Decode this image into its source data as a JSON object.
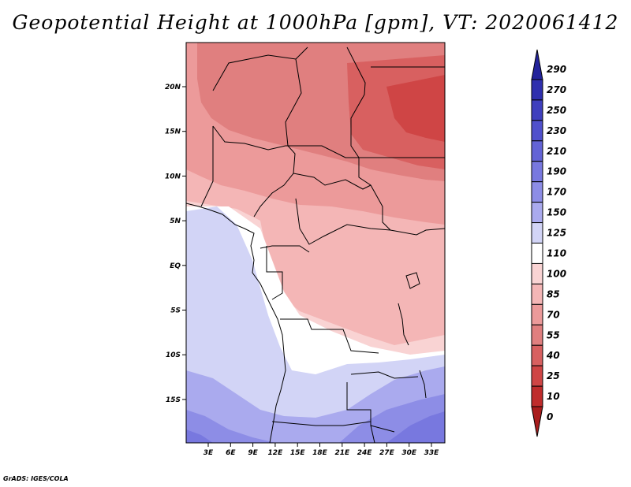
{
  "title": "Geopotential Height at 1000hPa [gpm], VT: 2020061412",
  "credit": "GrADS: IGES/COLA",
  "lat_ticks": [
    "20N",
    "15N",
    "10N",
    "5N",
    "EQ",
    "5S",
    "10S",
    "15S"
  ],
  "lon_ticks": [
    "3E",
    "6E",
    "9E",
    "12E",
    "15E",
    "18E",
    "21E",
    "24E",
    "27E",
    "30E",
    "33E"
  ],
  "colorbar": {
    "labels": [
      "290",
      "270",
      "250",
      "230",
      "210",
      "190",
      "170",
      "150",
      "125",
      "110",
      "100",
      "85",
      "70",
      "55",
      "40",
      "25",
      "10",
      "0"
    ],
    "colors": [
      "#23239b",
      "#2f2fae",
      "#3f3fbe",
      "#5050cc",
      "#6363d6",
      "#7878df",
      "#8d8de6",
      "#aaaaee",
      "#d2d4f6",
      "#ffffff",
      "#f9d3d3",
      "#f4b6b6",
      "#ec9a9a",
      "#e07f7f",
      "#d86060",
      "#cf4545",
      "#bf2c2c",
      "#a91d1d"
    ]
  }
}
